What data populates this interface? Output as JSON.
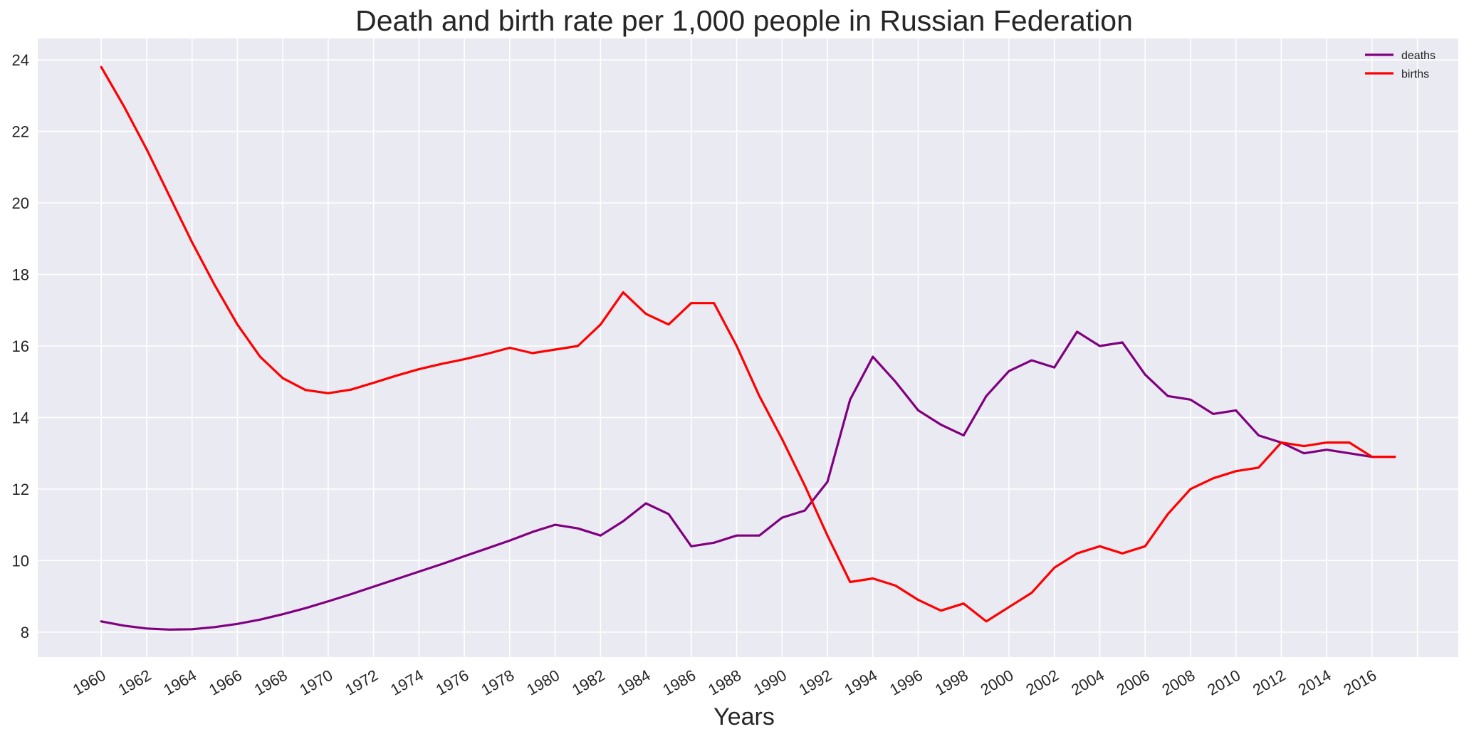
{
  "chart_data": {
    "type": "line",
    "title": "Death and birth rate per 1,000 people in Russian Federation",
    "xlabel": "Years",
    "ylabel": "",
    "xlim": [
      1957.2,
      2019.8
    ],
    "ylim": [
      7.3,
      24.6
    ],
    "xticks": [
      1960,
      1962,
      1964,
      1966,
      1968,
      1970,
      1972,
      1974,
      1976,
      1978,
      1980,
      1982,
      1984,
      1986,
      1988,
      1990,
      1992,
      1994,
      1996,
      1998,
      2000,
      2002,
      2004,
      2006,
      2008,
      2010,
      2012,
      2014,
      2016
    ],
    "x_gridlines": [
      1960,
      1962,
      1964,
      1966,
      1968,
      1970,
      1972,
      1974,
      1976,
      1978,
      1980,
      1982,
      1984,
      1986,
      1988,
      1990,
      1992,
      1994,
      1996,
      1998,
      2000,
      2002,
      2004,
      2006,
      2008,
      2010,
      2012,
      2014,
      2016,
      2018
    ],
    "yticks": [
      8,
      10,
      12,
      14,
      16,
      18,
      20,
      22,
      24
    ],
    "grid": true,
    "legend_position": "top-right",
    "x": [
      1960,
      1961,
      1962,
      1963,
      1964,
      1965,
      1966,
      1967,
      1968,
      1969,
      1970,
      1971,
      1972,
      1973,
      1974,
      1975,
      1976,
      1977,
      1978,
      1979,
      1980,
      1981,
      1982,
      1983,
      1984,
      1985,
      1986,
      1987,
      1988,
      1989,
      1990,
      1991,
      1992,
      1993,
      1994,
      1995,
      1996,
      1997,
      1998,
      1999,
      2000,
      2001,
      2002,
      2003,
      2004,
      2005,
      2006,
      2007,
      2008,
      2009,
      2010,
      2011,
      2012,
      2013,
      2014,
      2015,
      2016,
      2017
    ],
    "series": [
      {
        "name": "deaths",
        "color": "#800080",
        "values": [
          8.3,
          8.18,
          8.1,
          8.07,
          8.08,
          8.14,
          8.23,
          8.35,
          8.5,
          8.67,
          8.86,
          9.06,
          9.27,
          9.48,
          9.69,
          9.9,
          10.12,
          10.34,
          10.56,
          10.8,
          11.0,
          10.9,
          10.7,
          11.1,
          11.6,
          11.3,
          10.4,
          10.5,
          10.7,
          10.7,
          11.2,
          11.4,
          12.2,
          14.5,
          15.7,
          15.0,
          14.2,
          13.8,
          13.5,
          14.6,
          15.3,
          15.6,
          15.4,
          16.4,
          16.0,
          16.1,
          15.2,
          14.6,
          14.5,
          14.1,
          14.2,
          13.5,
          13.3,
          13.0,
          13.1,
          13.0,
          12.9,
          12.9
        ]
      },
      {
        "name": "births",
        "color": "#ff0000",
        "values": [
          23.8,
          22.7,
          21.5,
          20.2,
          18.9,
          17.7,
          16.6,
          15.7,
          15.1,
          14.77,
          14.68,
          14.78,
          14.97,
          15.17,
          15.35,
          15.5,
          15.63,
          15.78,
          15.95,
          15.8,
          15.9,
          16.0,
          16.6,
          17.5,
          16.9,
          16.6,
          17.2,
          17.2,
          16.0,
          14.6,
          13.4,
          12.1,
          10.7,
          9.4,
          9.5,
          9.3,
          8.9,
          8.6,
          8.8,
          8.3,
          8.7,
          9.1,
          9.8,
          10.2,
          10.4,
          10.2,
          10.4,
          11.3,
          12.0,
          12.3,
          12.5,
          12.6,
          13.3,
          13.2,
          13.3,
          13.3,
          12.9,
          12.9
        ]
      }
    ]
  }
}
